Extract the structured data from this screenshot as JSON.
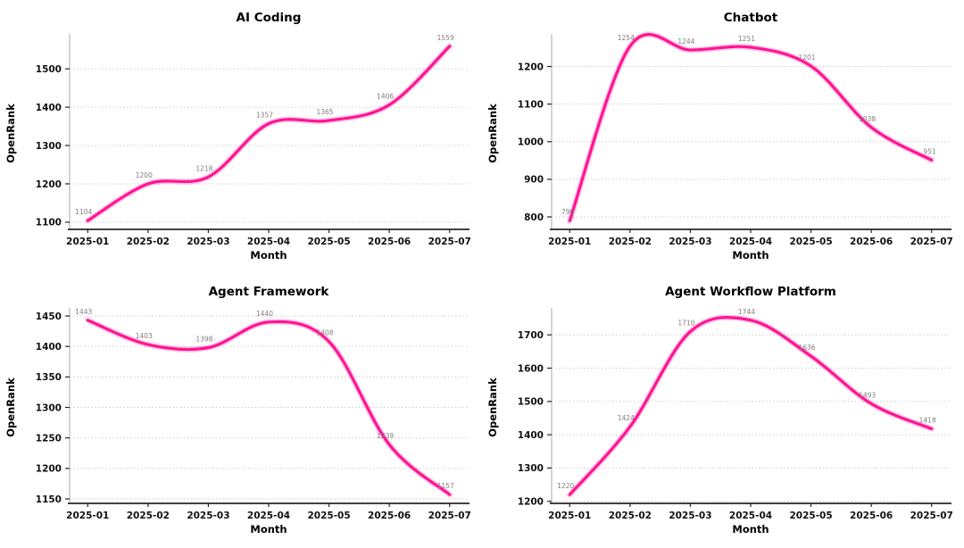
{
  "page": {
    "background": "#ffffff"
  },
  "style": {
    "line_color": "#ff1493",
    "line_glow_color": "#ff1493",
    "data_label_color": "#7f7f7f",
    "grid_color": "#cccccc",
    "axis_color": "#262626",
    "spine_color": "#aaaaaa",
    "tick_label_color": "#111111",
    "title_color": "#000000"
  },
  "chart_data": [
    {
      "type": "line",
      "title": "AI Coding",
      "xlabel": "Month",
      "ylabel": "OpenRank",
      "categories": [
        "2025-01",
        "2025-02",
        "2025-03",
        "2025-04",
        "2025-05",
        "2025-06",
        "2025-07"
      ],
      "values": [
        1104,
        1200,
        1218,
        1357,
        1365,
        1406,
        1559
      ],
      "yticks": [
        1100,
        1200,
        1300,
        1400,
        1500
      ],
      "grid": "dotted-horizontal",
      "legend": "none"
    },
    {
      "type": "line",
      "title": "Chatbot",
      "xlabel": "Month",
      "ylabel": "OpenRank",
      "categories": [
        "2025-01",
        "2025-02",
        "2025-03",
        "2025-04",
        "2025-05",
        "2025-06",
        "2025-07"
      ],
      "values": [
        790,
        1254,
        1244,
        1251,
        1201,
        1038,
        951
      ],
      "yticks": [
        800,
        900,
        1000,
        1100,
        1200
      ],
      "grid": "dotted-horizontal",
      "legend": "none"
    },
    {
      "type": "line",
      "title": "Agent Framework",
      "xlabel": "Month",
      "ylabel": "OpenRank",
      "categories": [
        "2025-01",
        "2025-02",
        "2025-03",
        "2025-04",
        "2025-05",
        "2025-06",
        "2025-07"
      ],
      "values": [
        1443,
        1403,
        1398,
        1440,
        1408,
        1239,
        1157
      ],
      "yticks": [
        1150,
        1200,
        1250,
        1300,
        1350,
        1400,
        1450
      ],
      "grid": "dotted-horizontal",
      "legend": "none"
    },
    {
      "type": "line",
      "title": "Agent Workflow Platform",
      "xlabel": "Month",
      "ylabel": "OpenRank",
      "categories": [
        "2025-01",
        "2025-02",
        "2025-03",
        "2025-04",
        "2025-05",
        "2025-06",
        "2025-07"
      ],
      "values": [
        1220,
        1424,
        1710,
        1744,
        1636,
        1493,
        1418
      ],
      "yticks": [
        1200,
        1300,
        1400,
        1500,
        1600,
        1700
      ],
      "grid": "dotted-horizontal",
      "legend": "none"
    }
  ]
}
